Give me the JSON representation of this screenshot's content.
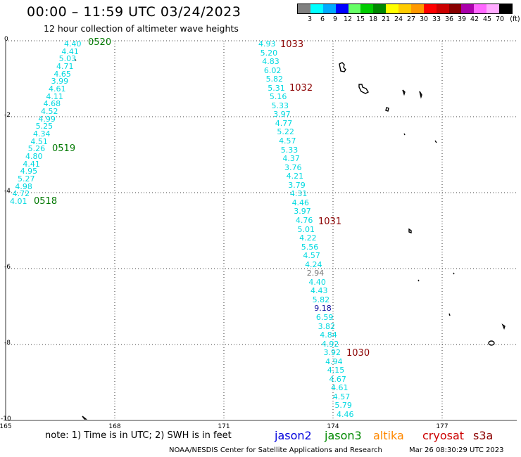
{
  "header": {
    "title": "00:00 – 11:59 UTC 03/24/2023",
    "subtitle": "12 hour collection of altimeter wave heights"
  },
  "legend": {
    "unit": "(ft)",
    "colors": [
      "#808080",
      "#00ffff",
      "#00aaff",
      "#0000ff",
      "#66ff66",
      "#00cc00",
      "#008800",
      "#ffff00",
      "#ffcc00",
      "#ff9900",
      "#ff0000",
      "#cc0000",
      "#880000",
      "#aa00aa",
      "#ff66ff",
      "#ffaaff",
      "#000000"
    ],
    "labels": [
      "3",
      "6",
      "9",
      "12",
      "15",
      "18",
      "21",
      "24",
      "27",
      "30",
      "33",
      "36",
      "39",
      "42",
      "45",
      "70"
    ]
  },
  "axes": {
    "x_ticks": [
      "165",
      "168",
      "171",
      "174",
      "177"
    ],
    "y_ticks": [
      "0",
      "-2",
      "-4",
      "-6",
      "-8",
      "-10"
    ]
  },
  "tracks": [
    {
      "satellite": "jason3",
      "readings": [
        "4.40",
        "4.41",
        "5.03",
        "4.71",
        "4.65",
        "3.99",
        "4.61",
        "4.11",
        "4.68",
        "4.52",
        "4.99",
        "5.25",
        "4.34",
        "4.51",
        "5.26",
        "4.80",
        "4.41",
        "4.95",
        "5.27",
        "4.98",
        "4.72",
        "4.01"
      ],
      "time_labels": [
        "0520",
        "0519",
        "0518"
      ]
    },
    {
      "satellite": "cryosat",
      "readings": [
        "4.93",
        "5.20",
        "4.83",
        "6.02",
        "5.82",
        "5.31",
        "5.16",
        "5.33",
        "3.97",
        "4.77",
        "5.22",
        "4.57",
        "5.33",
        "4.37",
        "3.76",
        "4.21",
        "3.79",
        "4.31",
        "4.46",
        "3.97",
        "4.76",
        "5.01",
        "4.22",
        "5.56",
        "4.57",
        "4.24",
        "2.94",
        "4.40",
        "4.43",
        "5.82",
        "9.18",
        "6.59",
        "3.82",
        "4.84",
        "4.92",
        "3.92",
        "4.94",
        "4.15",
        "4.67",
        "4.61",
        "4.57",
        "5.79",
        "4.46"
      ],
      "time_labels": [
        "1033",
        "1032",
        "1031",
        "1030"
      ]
    }
  ],
  "note": "note: 1) Time is in UTC; 2) SWH is in feet",
  "satellites": [
    {
      "name": "jason2",
      "color": "#0000dd"
    },
    {
      "name": "jason3",
      "color": "#008800"
    },
    {
      "name": "altika",
      "color": "#ff8800"
    },
    {
      "name": "cryosat",
      "color": "#cc0000"
    },
    {
      "name": "s3a",
      "color": "#8b0000"
    }
  ],
  "footer": {
    "credit": "NOAA/NESDIS Center for Satellite Applications and Research",
    "timestamp": "Mar 26 08:30:29 UTC 2023"
  }
}
